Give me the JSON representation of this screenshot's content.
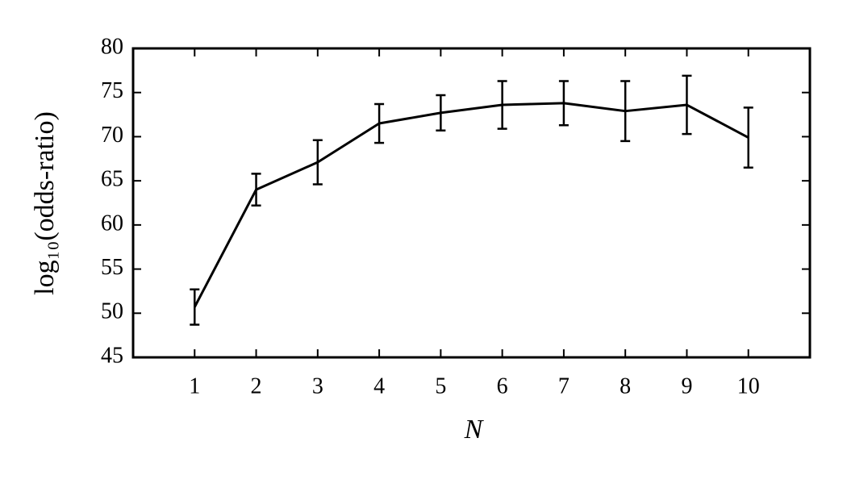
{
  "chart_data": {
    "type": "line",
    "xlabel": "N",
    "ylabel": "log₁₀(odds-ratio)",
    "x": [
      1,
      2,
      3,
      4,
      5,
      6,
      7,
      8,
      9,
      10
    ],
    "series": [
      {
        "color": "#000000",
        "values": [
          50.7,
          64.0,
          67.1,
          71.5,
          72.7,
          73.6,
          73.8,
          72.9,
          73.6,
          69.9
        ],
        "errors": [
          2.0,
          1.8,
          2.5,
          2.2,
          2.0,
          2.7,
          2.5,
          3.4,
          3.3,
          3.4
        ]
      }
    ],
    "xlim": [
      0,
      11
    ],
    "xticks": [
      1,
      2,
      3,
      4,
      5,
      6,
      7,
      8,
      9,
      10
    ],
    "ylim": [
      45,
      80
    ],
    "yticks": [
      45,
      50,
      55,
      60,
      65,
      70,
      75,
      80
    ]
  }
}
